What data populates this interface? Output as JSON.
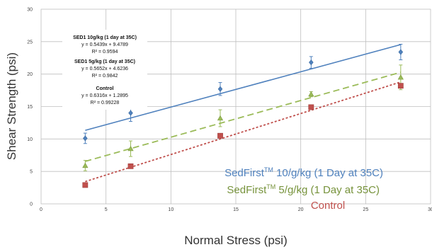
{
  "chart_data": {
    "type": "scatter",
    "title": "",
    "xlabel": "Normal Stress (psi)",
    "ylabel": "Shear Strength (psi)",
    "xlim": [
      0,
      30
    ],
    "ylim": [
      0,
      30
    ],
    "xticks": [
      0,
      5,
      10,
      15,
      20,
      25,
      30
    ],
    "yticks": [
      0,
      5,
      10,
      15,
      20,
      25,
      30
    ],
    "grid": true,
    "legend_position": "bottom-right",
    "series": [
      {
        "name": "SedFirst",
        "name_sup": "TM",
        "name_rest": " 10/g/kg (1 Day at 35C)",
        "color": "#4f81bd",
        "marker": "diamond",
        "trend_style": "solid",
        "x": [
          3.4,
          6.9,
          13.8,
          20.8,
          27.7
        ],
        "y": [
          10.1,
          14.0,
          17.7,
          21.8,
          23.4
        ],
        "err": [
          0.8,
          1.3,
          1.0,
          0.9,
          1.2
        ],
        "trend": {
          "slope": 0.5439,
          "intercept": 9.4789
        },
        "annotation": {
          "heading": "SED1 10g/kg (1 day at 35C)",
          "equation": "y = 0.5439x + 9.4789",
          "r2": "R² = 0.9594"
        }
      },
      {
        "name": "SedFirst",
        "name_sup": "TM",
        "name_rest": " 5/g/kg (1 Day at 35C)",
        "color": "#9bbb59",
        "marker": "triangle",
        "trend_style": "dashed",
        "x": [
          3.4,
          6.9,
          13.8,
          20.8,
          27.7
        ],
        "y": [
          5.9,
          8.5,
          13.2,
          16.9,
          19.5
        ],
        "err": [
          0.8,
          1.2,
          1.3,
          0.4,
          1.9
        ],
        "trend": {
          "slope": 0.5652,
          "intercept": 4.6236
        },
        "annotation": {
          "heading": "SED1 5g/kg (1 day at 35C)",
          "equation": "y = 0.5652x + 4.6236",
          "r2": "R² = 0.9842"
        }
      },
      {
        "name": "Control",
        "name_sup": "",
        "name_rest": "",
        "color": "#c0504d",
        "marker": "square",
        "trend_style": "dotted",
        "x": [
          3.4,
          6.9,
          13.8,
          20.8,
          27.7
        ],
        "y": [
          2.9,
          5.8,
          10.5,
          14.9,
          18.2
        ],
        "err": [
          0,
          0,
          0,
          0,
          0
        ],
        "trend": {
          "slope": 0.6316,
          "intercept": 1.2895
        },
        "annotation": {
          "heading": "Control",
          "equation": "y = 0.6316x + 1.2895",
          "r2": "R² = 0.99228"
        }
      }
    ]
  }
}
